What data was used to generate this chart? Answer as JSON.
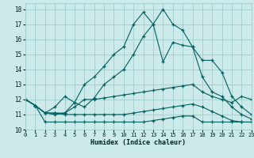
{
  "xlabel": "Humidex (Indice chaleur)",
  "bg_color": "#cceaea",
  "grid_color": "#a0cccc",
  "line_color": "#006060",
  "xlim": [
    0,
    23
  ],
  "ylim": [
    10,
    18.4
  ],
  "yticks": [
    10,
    11,
    12,
    13,
    14,
    15,
    16,
    17,
    18
  ],
  "xticks": [
    0,
    1,
    2,
    3,
    4,
    5,
    6,
    7,
    8,
    9,
    10,
    11,
    12,
    13,
    14,
    15,
    16,
    17,
    18,
    19,
    20,
    21,
    22,
    23
  ],
  "series": [
    [
      12.0,
      11.6,
      11.1,
      11.1,
      11.1,
      11.5,
      12.0,
      12.0,
      12.1,
      12.2,
      12.3,
      12.4,
      12.5,
      12.6,
      12.7,
      12.8,
      12.9,
      13.0,
      12.5,
      12.2,
      12.0,
      11.8,
      12.2,
      12.0
    ],
    [
      12.0,
      11.6,
      11.1,
      11.1,
      11.0,
      11.0,
      11.0,
      11.0,
      11.0,
      11.0,
      11.0,
      11.1,
      11.2,
      11.3,
      11.4,
      11.5,
      11.6,
      11.7,
      11.5,
      11.2,
      10.9,
      10.6,
      10.5,
      10.5
    ],
    [
      12.0,
      11.6,
      10.5,
      10.5,
      10.5,
      10.5,
      10.5,
      10.5,
      10.5,
      10.5,
      10.5,
      10.5,
      10.5,
      10.6,
      10.7,
      10.8,
      10.9,
      10.9,
      10.5,
      10.5,
      10.5,
      10.5,
      10.5,
      10.5
    ],
    [
      12.0,
      11.6,
      11.1,
      11.5,
      12.2,
      11.8,
      11.5,
      12.1,
      13.0,
      13.5,
      14.0,
      15.0,
      16.2,
      17.0,
      18.0,
      17.0,
      16.6,
      15.5,
      14.6,
      14.6,
      13.8,
      12.2,
      11.5,
      11.0
    ],
    [
      12.0,
      11.6,
      11.1,
      11.0,
      11.1,
      11.8,
      13.0,
      13.5,
      14.2,
      15.0,
      15.5,
      17.0,
      17.8,
      17.0,
      14.5,
      15.8,
      15.6,
      15.5,
      13.5,
      12.5,
      12.2,
      11.5,
      11.0,
      10.7
    ]
  ]
}
